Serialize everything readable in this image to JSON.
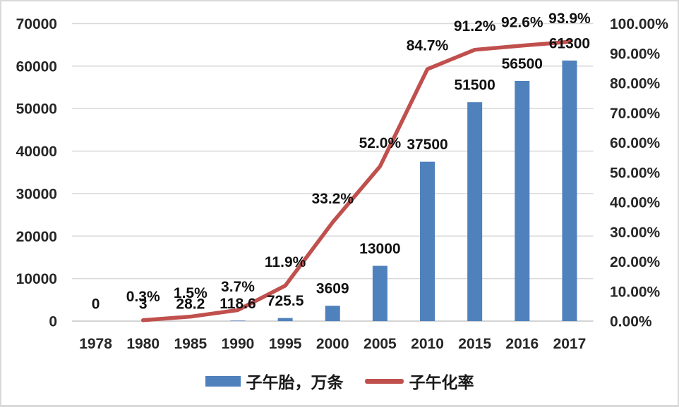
{
  "chart_data": {
    "type": "combo",
    "categories": [
      "1978",
      "1980",
      "1985",
      "1990",
      "1995",
      "2000",
      "2005",
      "2010",
      "2015",
      "2016",
      "2017"
    ],
    "series": [
      {
        "name": "子午胎，万条",
        "type": "bar",
        "axis": "left",
        "color": "#4f81bd",
        "values": [
          0,
          3,
          28.2,
          118.6,
          725.5,
          3609,
          13000,
          37500,
          51500,
          56500,
          61300
        ],
        "labels": [
          "0",
          "3",
          "28.2",
          "118.6",
          "725.5",
          "3609",
          "13000",
          "37500",
          "51500",
          "56500",
          "61300"
        ]
      },
      {
        "name": "子午化率",
        "type": "line",
        "axis": "right",
        "color": "#c0504d",
        "values": [
          null,
          0.3,
          1.5,
          3.7,
          11.9,
          33.2,
          52.0,
          84.7,
          91.2,
          92.6,
          93.9
        ],
        "labels": [
          "",
          "0.3%",
          "1.5%",
          "3.7%",
          "11.9%",
          "33.2%",
          "52.0%",
          "84.7%",
          "91.2%",
          "92.6%",
          "93.9%"
        ]
      }
    ],
    "left_axis": {
      "min": 0,
      "max": 70000,
      "step": 10000,
      "ticks": [
        "0",
        "10000",
        "20000",
        "30000",
        "40000",
        "50000",
        "60000",
        "70000"
      ]
    },
    "right_axis": {
      "min": 0,
      "max": 100,
      "step": 10,
      "ticks": [
        "0.00%",
        "10.00%",
        "20.00%",
        "30.00%",
        "40.00%",
        "50.00%",
        "60.00%",
        "70.00%",
        "80.00%",
        "90.00%",
        "100.00%"
      ]
    },
    "title": "",
    "xlabel": "",
    "ylabel": "",
    "grid": true,
    "legend_position": "bottom"
  },
  "colors": {
    "background": "#ffffff",
    "frame_border": "#d9d9d9",
    "grid": "#d9d9d9",
    "axis_line": "#c6c6c6",
    "tick_text": "#262626",
    "label_text": "#111111",
    "bar": "#4f81bd",
    "line": "#c0504d"
  }
}
